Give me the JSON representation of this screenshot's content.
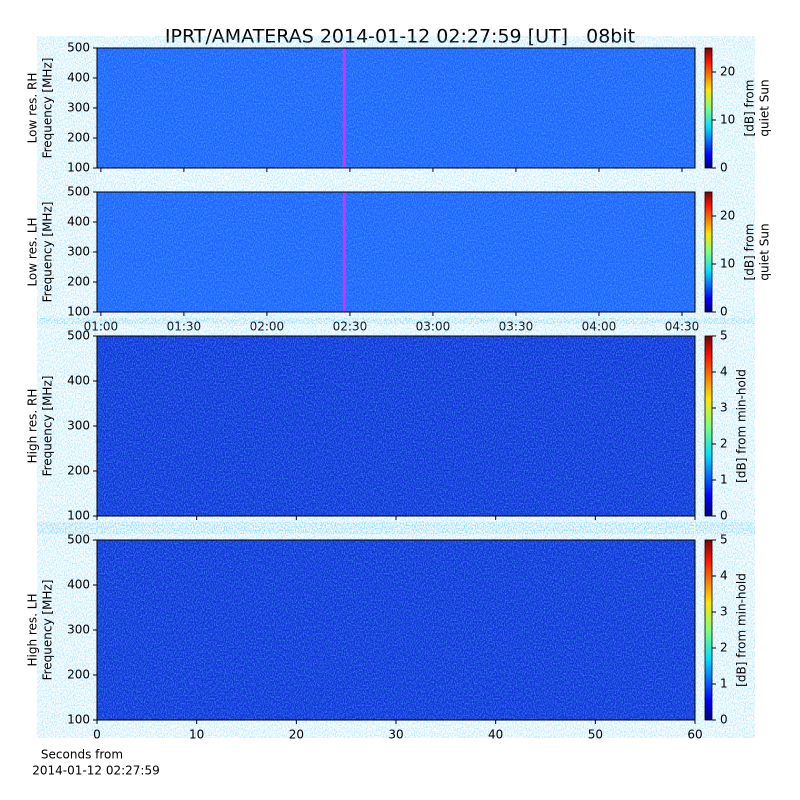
{
  "title": "IPRT/AMATERAS 2014-01-12 02:27:59 [UT]   08bit",
  "chart_data": [
    {
      "type": "spectrogram",
      "ylabel": [
        "Low res. RH",
        "Frequency [MHz]"
      ],
      "xlim": [
        58.6,
        274.7
      ],
      "ylim": [
        100,
        500
      ],
      "yticks": [
        100,
        200,
        300,
        400,
        500
      ],
      "colormap": "jet",
      "colorbar": {
        "label": [
          "[dB] from",
          "quiet Sun"
        ],
        "lim": [
          0,
          25
        ],
        "ticks": [
          0,
          10,
          20
        ]
      },
      "marker_x": 147.98,
      "marker_color": "#cc33ff"
    },
    {
      "type": "spectrogram",
      "ylabel": [
        "Low res. LH",
        "Frequency [MHz]"
      ],
      "xlim": [
        58.6,
        274.7
      ],
      "ylim": [
        100,
        500
      ],
      "yticks": [
        100,
        200,
        300,
        400,
        500
      ],
      "xticks": [
        {
          "value": 60,
          "label": "01:00"
        },
        {
          "value": 90,
          "label": "01:30"
        },
        {
          "value": 120,
          "label": "02:00"
        },
        {
          "value": 150,
          "label": "02:30"
        },
        {
          "value": 180,
          "label": "03:00"
        },
        {
          "value": 210,
          "label": "03:30"
        },
        {
          "value": 240,
          "label": "04:00"
        },
        {
          "value": 270,
          "label": "04:30"
        }
      ],
      "colormap": "jet",
      "colorbar": {
        "label": [
          "[dB] from",
          "quiet Sun"
        ],
        "lim": [
          0,
          25
        ],
        "ticks": [
          0,
          10,
          20
        ]
      },
      "marker_x": 147.98,
      "marker_color": "#cc33ff"
    },
    {
      "type": "spectrogram",
      "ylabel": [
        "High res. RH",
        "Frequency [MHz]"
      ],
      "xlim": [
        0,
        60
      ],
      "ylim": [
        100,
        500
      ],
      "yticks": [
        100,
        200,
        300,
        400,
        500
      ],
      "colormap": "jet",
      "colorbar": {
        "label": [
          "[dB] from min-hold"
        ],
        "lim": [
          0,
          5
        ],
        "ticks": [
          0,
          1,
          2,
          3,
          4,
          5
        ]
      }
    },
    {
      "type": "spectrogram",
      "ylabel": [
        "High res. LH",
        "Frequency [MHz]"
      ],
      "xlim": [
        0,
        60
      ],
      "ylim": [
        100,
        500
      ],
      "yticks": [
        100,
        200,
        300,
        400,
        500
      ],
      "xticks": [
        0,
        10,
        20,
        30,
        40,
        50,
        60
      ],
      "xlabel": [
        "Seconds from",
        "2014-01-12 02:27:59"
      ],
      "colormap": "jet",
      "colorbar": {
        "label": [
          "[dB] from min-hold"
        ],
        "lim": [
          0,
          5
        ],
        "ticks": [
          0,
          1,
          2,
          3,
          4,
          5
        ]
      }
    }
  ]
}
